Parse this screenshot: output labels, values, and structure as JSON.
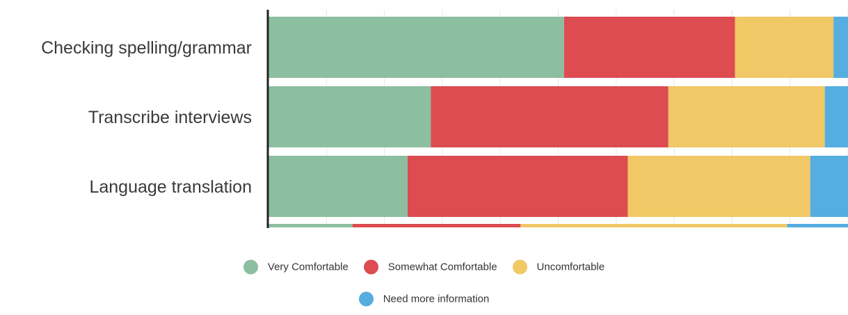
{
  "chart_data": {
    "type": "bar",
    "orientation": "horizontal",
    "stacked": true,
    "categories": [
      "Checking spelling/grammar",
      "Transcribe interviews",
      "Language translation"
    ],
    "series": [
      {
        "name": "Very Comfortable",
        "color": "#8bbfa0",
        "values": [
          51,
          28,
          24
        ]
      },
      {
        "name": "Somewhat Comfortable",
        "color": "#dc4c51",
        "values": [
          29.5,
          41,
          38
        ]
      },
      {
        "name": "Uncomfortable",
        "color": "#f0c865",
        "values": [
          17,
          27,
          31.5
        ]
      },
      {
        "name": "Need more information",
        "color": "#55ade0",
        "values": [
          2.5,
          4,
          6.5
        ]
      }
    ],
    "xlim": [
      0,
      100
    ],
    "grid": true,
    "legend_position": "bottom",
    "title": "",
    "xlabel": "",
    "ylabel": ""
  }
}
